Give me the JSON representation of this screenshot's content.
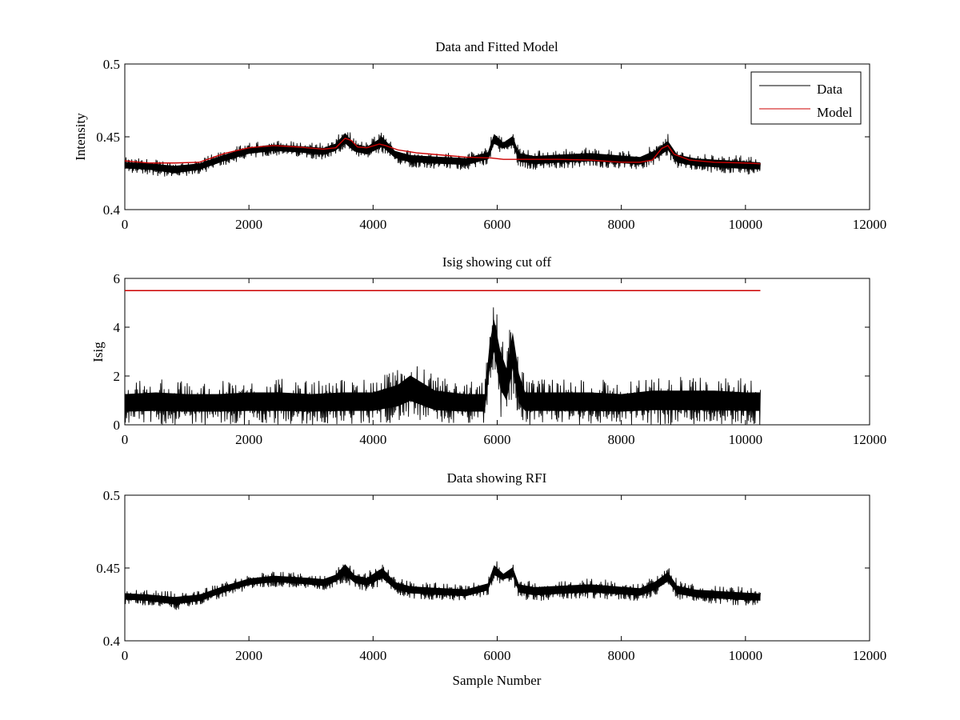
{
  "figure": {
    "background": "#ffffff",
    "data_color": "#000000",
    "model_color": "#cc0000",
    "cutoff_color": "#cc0000"
  },
  "chart_data": [
    {
      "type": "line",
      "title": "Data and Fitted Model",
      "xlabel": "",
      "ylabel": "Intensity",
      "xlim": [
        0,
        12000
      ],
      "ylim": [
        0.4,
        0.5
      ],
      "xticks": [
        "0",
        "2000",
        "4000",
        "6000",
        "8000",
        "10000",
        "12000"
      ],
      "yticks": [
        "0.4",
        "0.45",
        "0.5"
      ],
      "legend": {
        "position": "top-right",
        "entries": [
          "Data",
          "Model"
        ]
      },
      "series": [
        {
          "name": "Data",
          "color": "#000000",
          "kind": "noisy-band",
          "x": [
            0,
            400,
            800,
            1200,
            1600,
            2000,
            2400,
            2800,
            3200,
            3400,
            3550,
            3700,
            3900,
            4150,
            4350,
            4600,
            5000,
            5500,
            5850,
            5950,
            6100,
            6250,
            6350,
            6600,
            7000,
            7500,
            8000,
            8300,
            8550,
            8750,
            8900,
            9200,
            9600,
            10000,
            10240
          ],
          "upper": [
            0.436,
            0.435,
            0.434,
            0.435,
            0.441,
            0.446,
            0.448,
            0.447,
            0.446,
            0.449,
            0.458,
            0.449,
            0.447,
            0.455,
            0.444,
            0.441,
            0.44,
            0.439,
            0.443,
            0.457,
            0.449,
            0.455,
            0.443,
            0.441,
            0.442,
            0.443,
            0.441,
            0.44,
            0.445,
            0.452,
            0.442,
            0.439,
            0.438,
            0.437,
            0.436
          ],
          "lower": [
            0.425,
            0.424,
            0.421,
            0.424,
            0.43,
            0.435,
            0.437,
            0.436,
            0.434,
            0.437,
            0.44,
            0.436,
            0.434,
            0.438,
            0.432,
            0.429,
            0.428,
            0.427,
            0.431,
            0.44,
            0.439,
            0.44,
            0.429,
            0.427,
            0.428,
            0.429,
            0.428,
            0.427,
            0.431,
            0.436,
            0.428,
            0.426,
            0.425,
            0.424,
            0.424
          ]
        },
        {
          "name": "Model",
          "color": "#cc0000",
          "kind": "line",
          "x": [
            0,
            400,
            800,
            1200,
            1600,
            2000,
            2400,
            2800,
            3200,
            3400,
            3550,
            3650,
            3750,
            3900,
            4100,
            4200,
            4400,
            4700,
            5100,
            5500,
            5900,
            6100,
            6400,
            7000,
            7500,
            8000,
            8300,
            8500,
            8650,
            8750,
            8850,
            9100,
            9500,
            10000,
            10240
          ],
          "values": [
            0.4335,
            0.432,
            0.432,
            0.4325,
            0.4385,
            0.4425,
            0.444,
            0.443,
            0.4415,
            0.4425,
            0.449,
            0.4475,
            0.443,
            0.4425,
            0.445,
            0.444,
            0.441,
            0.439,
            0.4375,
            0.436,
            0.4355,
            0.4345,
            0.4345,
            0.4345,
            0.434,
            0.4325,
            0.4325,
            0.434,
            0.442,
            0.444,
            0.438,
            0.434,
            0.4325,
            0.432,
            0.4315
          ]
        }
      ]
    },
    {
      "type": "line",
      "title": "Isig showing cut off",
      "xlabel": "",
      "ylabel": "Isig",
      "xlim": [
        0,
        12000
      ],
      "ylim": [
        0,
        6
      ],
      "xticks": [
        "0",
        "2000",
        "4000",
        "6000",
        "8000",
        "10000",
        "12000"
      ],
      "yticks": [
        "0",
        "2",
        "4",
        "6"
      ],
      "series": [
        {
          "name": "Isig",
          "color": "#000000",
          "kind": "noisy-band",
          "x": [
            0,
            500,
            1000,
            1500,
            2000,
            2500,
            3000,
            3500,
            4000,
            4400,
            4600,
            5000,
            5500,
            5800,
            5880,
            5950,
            6050,
            6150,
            6250,
            6350,
            6450,
            7000,
            7500,
            8000,
            8500,
            9000,
            9500,
            10000,
            10240
          ],
          "upper": [
            1.8,
            1.9,
            1.8,
            1.8,
            1.9,
            1.9,
            1.8,
            1.9,
            1.9,
            2.3,
            2.8,
            2.0,
            1.8,
            1.8,
            4.2,
            5.3,
            4.2,
            3.3,
            4.9,
            3.0,
            1.9,
            1.9,
            1.9,
            1.8,
            2.0,
            2.0,
            2.0,
            1.9,
            1.9
          ],
          "lower": [
            0.0,
            0.0,
            0.0,
            0.0,
            0.0,
            0.0,
            0.0,
            0.0,
            0.0,
            0.1,
            0.2,
            0.0,
            0.0,
            0.0,
            1.5,
            2.0,
            0.3,
            0.0,
            1.2,
            0.0,
            0.0,
            0.0,
            0.0,
            0.0,
            0.0,
            0.0,
            0.0,
            0.0,
            0.0
          ]
        },
        {
          "name": "Cut off",
          "color": "#cc0000",
          "kind": "line",
          "x": [
            0,
            10240
          ],
          "values": [
            5.5,
            5.5
          ]
        }
      ]
    },
    {
      "type": "line",
      "title": "Data showing RFI",
      "xlabel": "Sample Number",
      "ylabel": "",
      "xlim": [
        0,
        12000
      ],
      "ylim": [
        0.4,
        0.5
      ],
      "xticks": [
        "0",
        "2000",
        "4000",
        "6000",
        "8000",
        "10000",
        "12000"
      ],
      "yticks": [
        "0.4",
        "0.45",
        "0.5"
      ],
      "series": [
        {
          "name": "Data",
          "color": "#000000",
          "kind": "noisy-band",
          "x": [
            0,
            400,
            800,
            1200,
            1600,
            2000,
            2400,
            2800,
            3200,
            3400,
            3550,
            3700,
            3900,
            4150,
            4350,
            4600,
            5000,
            5500,
            5850,
            5950,
            6100,
            6250,
            6350,
            6600,
            7000,
            7500,
            8000,
            8300,
            8550,
            8750,
            8900,
            9200,
            9600,
            10000,
            10240
          ],
          "upper": [
            0.436,
            0.435,
            0.434,
            0.435,
            0.441,
            0.446,
            0.448,
            0.447,
            0.446,
            0.449,
            0.458,
            0.449,
            0.447,
            0.455,
            0.444,
            0.441,
            0.44,
            0.439,
            0.443,
            0.457,
            0.449,
            0.455,
            0.443,
            0.441,
            0.442,
            0.443,
            0.441,
            0.44,
            0.445,
            0.452,
            0.442,
            0.439,
            0.438,
            0.437,
            0.436
          ],
          "lower": [
            0.425,
            0.424,
            0.421,
            0.424,
            0.43,
            0.435,
            0.437,
            0.436,
            0.434,
            0.437,
            0.44,
            0.436,
            0.434,
            0.438,
            0.432,
            0.429,
            0.428,
            0.427,
            0.431,
            0.44,
            0.439,
            0.44,
            0.429,
            0.427,
            0.428,
            0.429,
            0.428,
            0.427,
            0.431,
            0.436,
            0.428,
            0.426,
            0.425,
            0.424,
            0.424
          ]
        }
      ]
    }
  ]
}
